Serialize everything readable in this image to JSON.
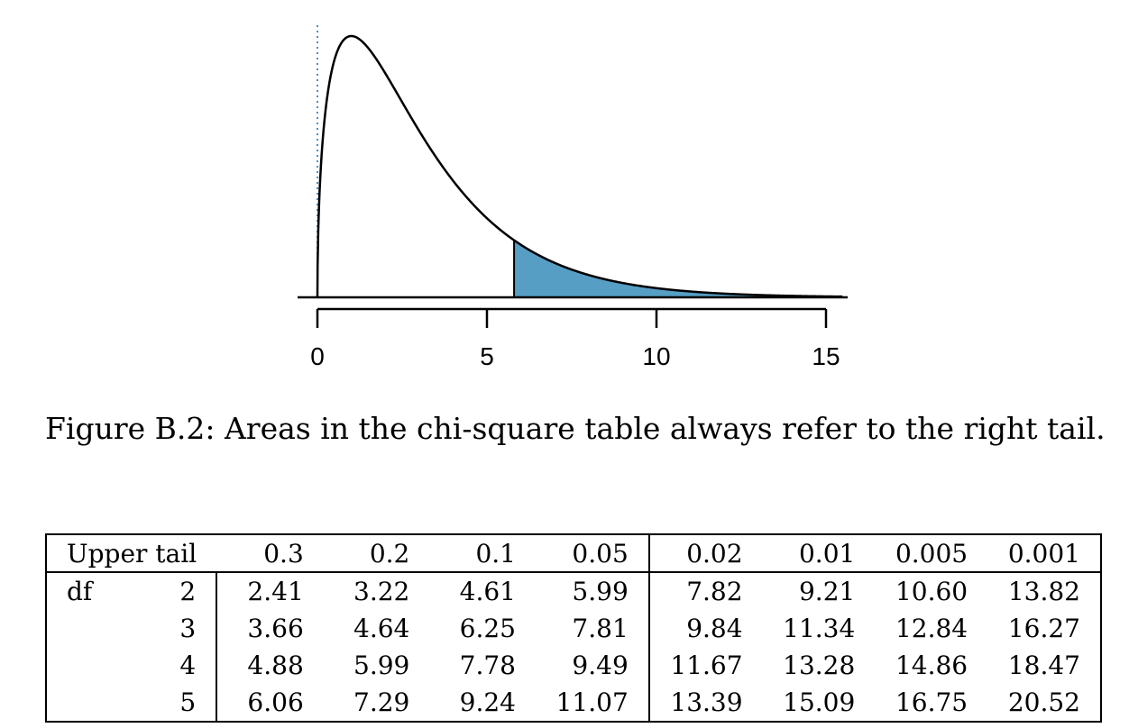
{
  "chart_data": {
    "type": "area",
    "distribution": "chi-square",
    "df": 3,
    "shaded_from": 5.8,
    "shaded_tail": "right",
    "xlim": [
      0,
      15.5
    ],
    "x_ticks": [
      0,
      5,
      10,
      15
    ],
    "tick_labels": [
      "0",
      "5",
      "10",
      "15"
    ],
    "colors": {
      "curve": "#000000",
      "shade": "#569ec4",
      "zero_line": "#4f8fc0"
    }
  },
  "caption": "Figure B.2: Areas in the chi-square table always refer to the right tail.",
  "table": {
    "header_label": "Upper tail",
    "tails": [
      "0.3",
      "0.2",
      "0.1",
      "0.05",
      "0.02",
      "0.01",
      "0.005",
      "0.001"
    ],
    "df_label": "df",
    "rows": [
      {
        "df": "2",
        "values": [
          "2.41",
          "3.22",
          "4.61",
          "5.99",
          "7.82",
          "9.21",
          "10.60",
          "13.82"
        ]
      },
      {
        "df": "3",
        "values": [
          "3.66",
          "4.64",
          "6.25",
          "7.81",
          "9.84",
          "11.34",
          "12.84",
          "16.27"
        ]
      },
      {
        "df": "4",
        "values": [
          "4.88",
          "5.99",
          "7.78",
          "9.49",
          "11.67",
          "13.28",
          "14.86",
          "18.47"
        ]
      },
      {
        "df": "5",
        "values": [
          "6.06",
          "7.29",
          "9.24",
          "11.07",
          "13.39",
          "15.09",
          "16.75",
          "20.52"
        ]
      }
    ]
  }
}
